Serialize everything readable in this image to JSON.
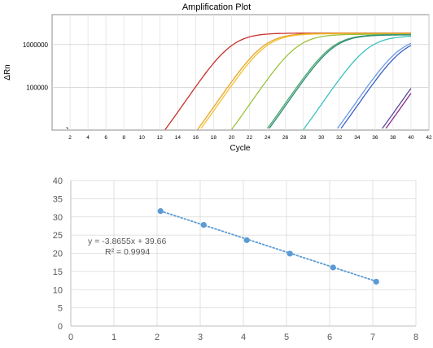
{
  "chart_data": [
    {
      "type": "line",
      "title": "Amplification Plot",
      "xlabel": "Cycle",
      "ylabel": "ΔRn",
      "xlim": [
        0,
        42
      ],
      "ylim": [
        10000,
        5000000
      ],
      "yscale": "log",
      "x_ticks": [
        2,
        4,
        6,
        8,
        10,
        12,
        14,
        16,
        18,
        20,
        22,
        24,
        26,
        28,
        30,
        32,
        34,
        36,
        38,
        40,
        42
      ],
      "y_ticks": [
        {
          "value": 100000,
          "label": "100000"
        },
        {
          "value": 1000000,
          "label": "1000000"
        }
      ],
      "grid": true,
      "series": [
        {
          "color": "#c8302a",
          "Ct": 9.5,
          "plateau": 1850000
        },
        {
          "color": "#e8a323",
          "Ct": 13.1,
          "plateau": 1830000
        },
        {
          "color": "#f2c230",
          "Ct": 13.4,
          "plateau": 1790000
        },
        {
          "color": "#9cc23a",
          "Ct": 16.9,
          "plateau": 1740000
        },
        {
          "color": "#4aa86a",
          "Ct": 20.8,
          "plateau": 1710000
        },
        {
          "color": "#2e8a7a",
          "Ct": 21.0,
          "plateau": 1680000
        },
        {
          "color": "#3cc0c0",
          "Ct": 24.9,
          "plateau": 1600000
        },
        {
          "color": "#6a9ae0",
          "Ct": 28.6,
          "plateau": 1500000
        },
        {
          "color": "#3a5fc8",
          "Ct": 29.0,
          "plateau": 1450000
        },
        {
          "color": "#5a4a9a",
          "Ct": 33.6,
          "plateau": 1400000
        },
        {
          "color": "#8a2a8a",
          "Ct": 34.0,
          "plateau": 1380000
        }
      ]
    },
    {
      "type": "scatter",
      "xlim": [
        0,
        8
      ],
      "ylim": [
        0,
        40
      ],
      "x_ticks": [
        0,
        1,
        2,
        3,
        4,
        5,
        6,
        7,
        8
      ],
      "y_ticks": [
        0,
        5,
        10,
        15,
        20,
        25,
        30,
        35,
        40
      ],
      "grid": true,
      "series": [
        {
          "x": [
            2.08,
            3.08,
            4.08,
            5.08,
            6.08,
            7.08
          ],
          "y": [
            31.6,
            27.8,
            23.6,
            19.9,
            16.1,
            12.2
          ],
          "color": "#5b9bd5"
        }
      ],
      "trendline": {
        "slope": -3.8655,
        "intercept": 39.66,
        "style": "dotted",
        "color": "#5b9bd5"
      },
      "annotations": [
        "y = -3.8655x + 39.66",
        "R² = 0.9994"
      ]
    }
  ]
}
